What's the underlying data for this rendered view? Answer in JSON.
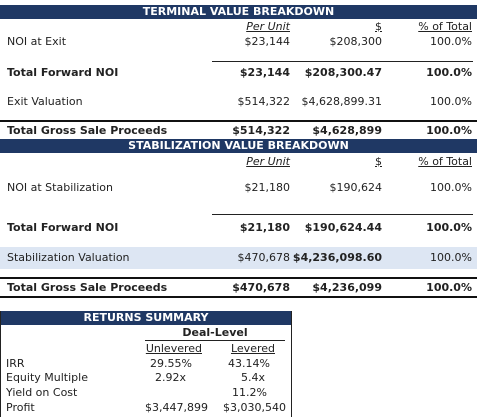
{
  "terminal": {
    "title": "TERMINAL VALUE BREAKDOWN",
    "col_per_unit": "Per Unit",
    "col_dollar": "$",
    "col_pct": "% of Total",
    "noi_exit": {
      "label": "NOI at Exit",
      "per_unit": "$23,144",
      "total": "$208,300",
      "pct": "100.0%"
    },
    "total_forward_noi": {
      "label": "Total Forward NOI",
      "per_unit": "$23,144",
      "total": "$208,300.47",
      "pct": "100.0%"
    },
    "exit_valuation": {
      "label": "Exit Valuation",
      "per_unit": "$514,322",
      "total": "$4,628,899.31",
      "pct": "100.0%"
    },
    "gross_sale": {
      "label": "Total Gross Sale Proceeds",
      "per_unit": "$514,322",
      "total": "$4,628,899",
      "pct": "100.0%"
    }
  },
  "stabilization": {
    "title": "STABILIZATION VALUE BREAKDOWN",
    "col_per_unit": "Per Unit",
    "col_dollar": "$",
    "col_pct": "% of Total",
    "noi_stab": {
      "label": "NOI at Stabilization",
      "per_unit": "$21,180",
      "total": "$190,624",
      "pct": "100.0%"
    },
    "total_forward_noi": {
      "label": "Total Forward NOI",
      "per_unit": "$21,180",
      "total": "$190,624.44",
      "pct": "100.0%"
    },
    "stab_valuation": {
      "label": "Stabilization Valuation",
      "per_unit": "$470,678",
      "total": "$4,236,098.60",
      "pct": "100.0%"
    },
    "gross_sale": {
      "label": "Total Gross Sale Proceeds",
      "per_unit": "$470,678",
      "total": "$4,236,099",
      "pct": "100.0%"
    }
  },
  "returns": {
    "title": "RETURNS SUMMARY",
    "subtitle": "Deal-Level",
    "col_unlevered": "Unlevered",
    "col_levered": "Levered",
    "irr": {
      "label": "IRR",
      "unlevered": "29.55%",
      "levered": "43.14%"
    },
    "equity_multiple": {
      "label": "Equity Multiple",
      "unlevered": "2.92x",
      "levered": "5.4x"
    },
    "yield_on_cost": {
      "label": "Yield on Cost",
      "unlevered": "",
      "levered": "11.2%"
    },
    "profit": {
      "label": "Profit",
      "unlevered": "$3,447,899",
      "levered": "$3,030,540"
    }
  },
  "colors": {
    "header_bg": "#1f3864",
    "highlight_bg": "#dde6f3"
  }
}
